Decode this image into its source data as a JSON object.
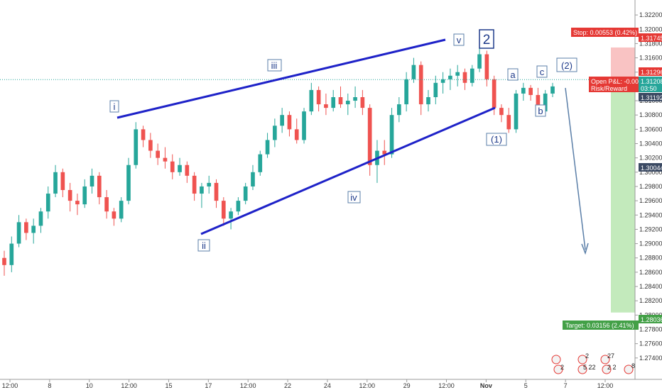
{
  "chart_data": {
    "type": "candlestick",
    "instrument_hint": "",
    "y_axis": {
      "min": 1.2715,
      "max": 1.3235,
      "ticks": [
        "1.32200",
        "1.32000",
        "1.31800",
        "1.31600",
        "1.31400",
        "1.31200",
        "1.31000",
        "1.30800",
        "1.30600",
        "1.30400",
        "1.30200",
        "1.30000",
        "1.29800",
        "1.29600",
        "1.29400",
        "1.29200",
        "1.29000",
        "1.28800",
        "1.28600",
        "1.28400",
        "1.28200",
        "1.28000",
        "1.27800",
        "1.27600",
        "1.27400"
      ]
    },
    "x_axis": {
      "ticks": [
        "12:00",
        "8",
        "10",
        "12:00",
        "15",
        "17",
        "12:00",
        "22",
        "24",
        "12:00",
        "29",
        "12:00",
        "Nov",
        "5",
        "7",
        "12:00"
      ]
    },
    "candles": [
      [
        1.288,
        1.289,
        1.2855,
        1.287
      ],
      [
        1.287,
        1.291,
        1.286,
        1.29
      ],
      [
        1.29,
        1.294,
        1.2895,
        1.293
      ],
      [
        1.293,
        1.2935,
        1.2905,
        1.2915
      ],
      [
        1.2915,
        1.2935,
        1.29,
        1.2925
      ],
      [
        1.2925,
        1.295,
        1.2915,
        1.2945
      ],
      [
        1.2945,
        1.298,
        1.2935,
        1.297
      ],
      [
        1.297,
        1.301,
        1.2965,
        1.3
      ],
      [
        1.3,
        1.3005,
        1.2965,
        1.2975
      ],
      [
        1.2975,
        1.2985,
        1.2945,
        1.296
      ],
      [
        1.296,
        1.297,
        1.294,
        1.2955
      ],
      [
        1.2955,
        1.299,
        1.295,
        1.298
      ],
      [
        1.298,
        1.3005,
        1.297,
        1.2995
      ],
      [
        1.2995,
        1.3,
        1.2955,
        1.2965
      ],
      [
        1.2965,
        1.2975,
        1.2935,
        1.2945
      ],
      [
        1.2945,
        1.295,
        1.2925,
        1.2935
      ],
      [
        1.2935,
        1.2965,
        1.293,
        1.296
      ],
      [
        1.296,
        1.302,
        1.2955,
        1.301
      ],
      [
        1.301,
        1.307,
        1.3005,
        1.306
      ],
      [
        1.306,
        1.3065,
        1.3035,
        1.3045
      ],
      [
        1.3045,
        1.3055,
        1.302,
        1.303
      ],
      [
        1.303,
        1.304,
        1.301,
        1.302
      ],
      [
        1.302,
        1.3035,
        1.3005,
        1.3015
      ],
      [
        1.3015,
        1.3025,
        1.299,
        1.3
      ],
      [
        1.3,
        1.302,
        1.2995,
        1.301
      ],
      [
        1.301,
        1.3015,
        1.2985,
        1.2995
      ],
      [
        1.2995,
        1.3,
        1.296,
        1.297
      ],
      [
        1.297,
        1.2985,
        1.295,
        1.298
      ],
      [
        1.298,
        1.2995,
        1.297,
        1.2985
      ],
      [
        1.2985,
        1.299,
        1.295,
        1.296
      ],
      [
        1.296,
        1.2965,
        1.2925,
        1.2935
      ],
      [
        1.2935,
        1.295,
        1.292,
        1.2945
      ],
      [
        1.2945,
        1.2965,
        1.294,
        1.296
      ],
      [
        1.296,
        1.2985,
        1.2955,
        1.298
      ],
      [
        1.298,
        1.301,
        1.2975,
        1.3
      ],
      [
        1.3,
        1.303,
        1.2995,
        1.3025
      ],
      [
        1.3025,
        1.3055,
        1.302,
        1.3045
      ],
      [
        1.3045,
        1.3075,
        1.3035,
        1.3065
      ],
      [
        1.3065,
        1.309,
        1.3055,
        1.308
      ],
      [
        1.308,
        1.3085,
        1.305,
        1.306
      ],
      [
        1.306,
        1.3075,
        1.304,
        1.3045
      ],
      [
        1.3045,
        1.309,
        1.304,
        1.3085
      ],
      [
        1.3085,
        1.3125,
        1.308,
        1.3115
      ],
      [
        1.3115,
        1.312,
        1.3085,
        1.3095
      ],
      [
        1.3095,
        1.311,
        1.308,
        1.309
      ],
      [
        1.309,
        1.3115,
        1.3085,
        1.3105
      ],
      [
        1.3105,
        1.312,
        1.309,
        1.3095
      ],
      [
        1.3095,
        1.311,
        1.308,
        1.31
      ],
      [
        1.31,
        1.312,
        1.309,
        1.3105
      ],
      [
        1.3105,
        1.3115,
        1.308,
        1.309
      ],
      [
        1.309,
        1.3095,
        1.2995,
        1.301
      ],
      [
        1.301,
        1.3045,
        1.2985,
        1.303
      ],
      [
        1.303,
        1.3045,
        1.301,
        1.3025
      ],
      [
        1.3025,
        1.309,
        1.302,
        1.308
      ],
      [
        1.308,
        1.3105,
        1.307,
        1.3095
      ],
      [
        1.3095,
        1.314,
        1.3085,
        1.313
      ],
      [
        1.313,
        1.316,
        1.3125,
        1.315
      ],
      [
        1.315,
        1.3155,
        1.308,
        1.3095
      ],
      [
        1.3095,
        1.3115,
        1.3085,
        1.3105
      ],
      [
        1.3105,
        1.3135,
        1.3095,
        1.3125
      ],
      [
        1.3125,
        1.314,
        1.311,
        1.313
      ],
      [
        1.313,
        1.3145,
        1.3115,
        1.3135
      ],
      [
        1.3135,
        1.315,
        1.312,
        1.314
      ],
      [
        1.314,
        1.3145,
        1.3115,
        1.3125
      ],
      [
        1.3125,
        1.315,
        1.312,
        1.3145
      ],
      [
        1.3145,
        1.3175,
        1.314,
        1.3165
      ],
      [
        1.3165,
        1.317,
        1.312,
        1.313
      ],
      [
        1.313,
        1.3135,
        1.308,
        1.309
      ],
      [
        1.309,
        1.3095,
        1.307,
        1.308
      ],
      [
        1.308,
        1.309,
        1.3055,
        1.306
      ],
      [
        1.306,
        1.3115,
        1.3055,
        1.311
      ],
      [
        1.311,
        1.3125,
        1.31,
        1.3118
      ],
      [
        1.3118,
        1.3122,
        1.31,
        1.3108
      ],
      [
        1.3108,
        1.3118,
        1.3078,
        1.3085
      ],
      [
        1.3085,
        1.3115,
        1.3082,
        1.311
      ],
      [
        1.311,
        1.3125,
        1.3105,
        1.312
      ]
    ]
  },
  "price_labels": {
    "stop_label": "Stop: 0.00553 (0.42%)",
    "stop_price": "1.31745",
    "current_price": "1.31296",
    "position_label": "Open P&L: -0.00",
    "position_price": "1.31208",
    "risk_reward_label": "Risk/Reward",
    "countdown": "03:50",
    "entry_price": "1.31192",
    "level_price": "1.30044",
    "target_label": "Target: 0.03156 (2.41%)",
    "target_price": "1.28036"
  },
  "wave_labels": {
    "i": "i",
    "ii": "ii",
    "iii": "iii",
    "iv": "iv",
    "v": "v",
    "two": "2",
    "one_paren": "(1)",
    "a": "a",
    "b": "b",
    "c": "c",
    "two_paren": "(2)"
  },
  "event_badges": [
    "2",
    "27",
    "2",
    "5 22",
    "2 2",
    "8"
  ],
  "colors": {
    "bull": "#26a69a",
    "bear": "#ef5350",
    "trendline": "#1e22c8",
    "projection_arrow": "#5b7fa8",
    "stop_zone": "#f8b8b8",
    "target_zone": "#b9e6b0",
    "stop_tag": "#e53935",
    "target_tag": "#43a047",
    "current_price_line": "#26a69a",
    "axis_tag_dark": "#3b4a63"
  }
}
